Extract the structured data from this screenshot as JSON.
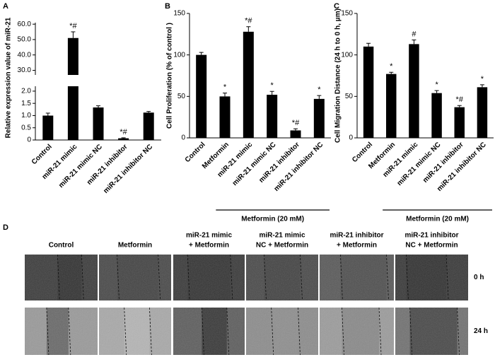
{
  "chart_data": [
    {
      "type": "bar",
      "panel_label": "A",
      "ylabel": "Relative expression value of miR-21",
      "categories": [
        "Control",
        "miR-21 mimic",
        "miR-21 mimic NC",
        "miR-21 inhibitor",
        "miR-21 inhibitor NC"
      ],
      "values": [
        1.0,
        51,
        1.33,
        0.07,
        1.12
      ],
      "errors": [
        0.1,
        4,
        0.07,
        0.02,
        0.05
      ],
      "annotations": [
        null,
        "*#",
        null,
        "*#",
        null
      ],
      "color": "#000000",
      "axis_segments": [
        {
          "ylim": [
            0,
            2.2
          ],
          "yticks": [
            0,
            0.5,
            {
              "value": 1,
              "label": "1.0"
            },
            1.5,
            {
              "value": 2,
              "label": "2.0"
            }
          ]
        },
        {
          "ylim": [
            27,
            61
          ],
          "yticks": [
            {
              "value": 30,
              "label": "30.0"
            },
            {
              "value": 40,
              "label": "40.0"
            },
            {
              "value": 50,
              "label": "50.0"
            },
            {
              "value": 60,
              "label": "60.0"
            }
          ]
        }
      ]
    },
    {
      "type": "bar",
      "panel_label": "B",
      "ylabel": "Cell Proliferation (% of control )",
      "categories": [
        "Control",
        "Metformin",
        "miR-21 mimic",
        "miR-21 mimic NC",
        "miR-21 inhibitor",
        "miR-21 inhibitor NC"
      ],
      "values": [
        100,
        50,
        128,
        52,
        9,
        47
      ],
      "errors": [
        3,
        4,
        6,
        4,
        2,
        4
      ],
      "annotations": [
        null,
        "*",
        "*#",
        "*",
        "*#",
        "*"
      ],
      "color": "#000000",
      "ylim": [
        0,
        150
      ],
      "yticks": [
        0,
        50,
        100,
        150
      ],
      "group_label": "Metformin (20 mM)"
    },
    {
      "type": "bar",
      "panel_label": "C",
      "ylabel": "Cell Migration Distance (24 h to 0 h, μm)",
      "categories": [
        "Control",
        "Metformin",
        "miR-21 mimic",
        "miR-21 mimic NC",
        "miR-21 inhibitor",
        "miR-21 inhibitor NC"
      ],
      "values": [
        110,
        77,
        113,
        54,
        37,
        61
      ],
      "errors": [
        4,
        2,
        5,
        3,
        2,
        3
      ],
      "annotations": [
        null,
        "*",
        "#",
        "*",
        "*#",
        "*"
      ],
      "color": "#000000",
      "ylim": [
        0,
        150
      ],
      "yticks": [
        0,
        50,
        100,
        150
      ],
      "group_label": "Metformin (20 mM)"
    }
  ],
  "panel_d": {
    "label": "D",
    "columns": [
      [
        "Control"
      ],
      [
        "Metformin"
      ],
      [
        "miR-21 mimic",
        "+ Metformin"
      ],
      [
        "miR-21 mimic",
        "NC + Metformin"
      ],
      [
        "miR-21 inhibitor",
        "+ Metformin"
      ],
      [
        "miR-21 inhibitor",
        "NC + Metformin"
      ]
    ],
    "rows": [
      "0 h",
      "24 h"
    ]
  }
}
